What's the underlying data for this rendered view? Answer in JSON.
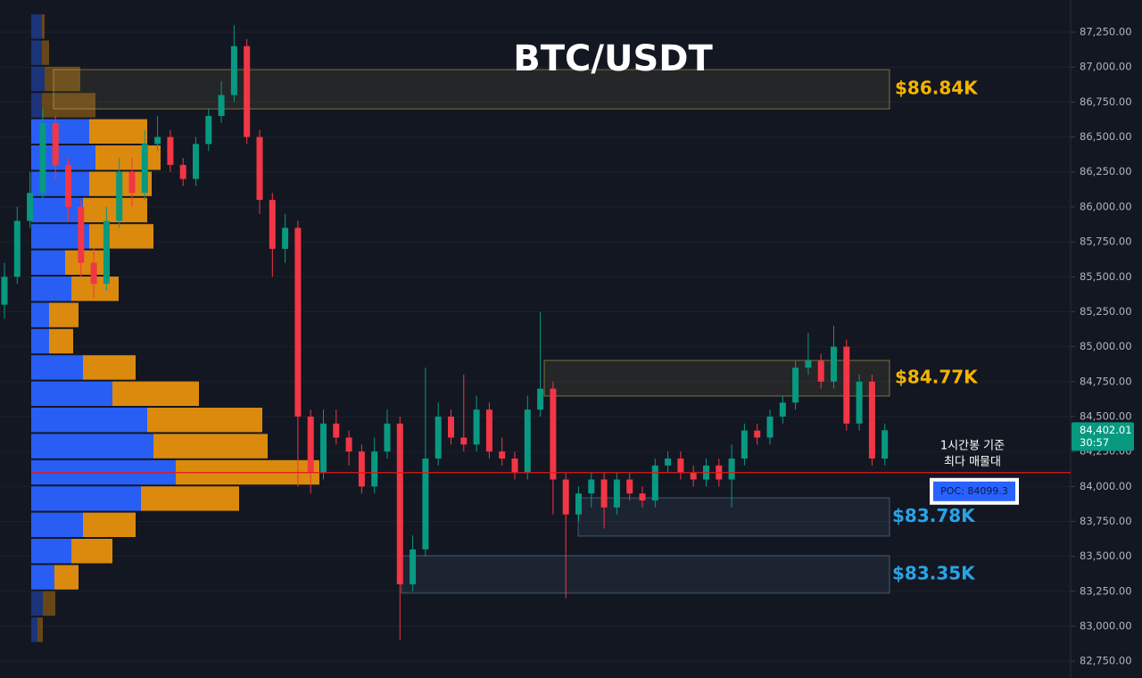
{
  "chart_data": {
    "type": "candlestick",
    "title": "BTC/USDT",
    "ylim": [
      82630,
      87480
    ],
    "yticks": [
      {
        "value": 82750,
        "label": "82,750.00"
      },
      {
        "value": 83000,
        "label": "83,000.00"
      },
      {
        "value": 83250,
        "label": "83,250.00"
      },
      {
        "value": 83500,
        "label": "83,500.00"
      },
      {
        "value": 83750,
        "label": "83,750.00"
      },
      {
        "value": 84000,
        "label": "84,000.00"
      },
      {
        "value": 84250,
        "label": "84,250.00"
      },
      {
        "value": 84500,
        "label": "84,500.00"
      },
      {
        "value": 84750,
        "label": "84,750.00"
      },
      {
        "value": 85000,
        "label": "85,000.00"
      },
      {
        "value": 85250,
        "label": "85,250.00"
      },
      {
        "value": 85500,
        "label": "85,500.00"
      },
      {
        "value": 85750,
        "label": "85,750.00"
      },
      {
        "value": 86000,
        "label": "86,000.00"
      },
      {
        "value": 86250,
        "label": "86,250.00"
      },
      {
        "value": 86500,
        "label": "86,500.00"
      },
      {
        "value": 86750,
        "label": "86,750.00"
      },
      {
        "value": 87000,
        "label": "87,000.00"
      },
      {
        "value": 87250,
        "label": "87,250.00"
      }
    ],
    "up_color": "#089981",
    "down_color": "#f23645",
    "open": [
      85300,
      85500,
      85900,
      86100,
      86600,
      86300,
      86000,
      85600,
      85450,
      85900,
      86250,
      86100,
      86450,
      86500,
      86300,
      86200,
      86450,
      86650,
      86800,
      87150,
      86500,
      86050,
      85700,
      85850,
      84500,
      84100,
      84450,
      84350,
      84250,
      84000,
      84250,
      84450,
      83300,
      83550,
      84200,
      84500,
      84350,
      84300,
      84550,
      84250,
      84200,
      84100,
      84550,
      84700,
      84050,
      83800,
      83950,
      84050,
      83850,
      84050,
      83950,
      83900,
      84150,
      84200,
      84100,
      84050,
      84150,
      84050,
      84200,
      84400,
      84350,
      84500,
      84600,
      84850,
      84900,
      84750,
      85000,
      84450,
      84750,
      84200
    ],
    "high": [
      85600,
      86000,
      86250,
      86700,
      86650,
      86350,
      86050,
      85700,
      86000,
      86350,
      86350,
      86550,
      86650,
      86550,
      86350,
      86500,
      86700,
      86900,
      87300,
      87200,
      86550,
      86100,
      85950,
      85900,
      84550,
      84550,
      84550,
      84400,
      84300,
      84350,
      84550,
      84500,
      83650,
      84850,
      84600,
      84550,
      84800,
      84650,
      84600,
      84350,
      84250,
      84650,
      85250,
      84750,
      84100,
      84000,
      84100,
      84100,
      84100,
      84100,
      84000,
      84200,
      84250,
      84250,
      84150,
      84200,
      84200,
      84300,
      84450,
      84450,
      84550,
      84650,
      84900,
      85100,
      84950,
      85150,
      85050,
      84800,
      84800,
      84450
    ],
    "low": [
      85200,
      85450,
      85850,
      86050,
      86200,
      85900,
      85500,
      85350,
      85400,
      85850,
      86000,
      86050,
      86400,
      86250,
      86150,
      86150,
      86400,
      86600,
      86750,
      86450,
      85950,
      85500,
      85600,
      84000,
      83950,
      84050,
      84300,
      84150,
      83950,
      83950,
      84200,
      82900,
      83250,
      83500,
      84150,
      84300,
      84250,
      84250,
      84200,
      84150,
      84050,
      84050,
      84500,
      83800,
      83200,
      83750,
      83850,
      83700,
      83800,
      83900,
      83850,
      83850,
      84100,
      84050,
      84000,
      84000,
      84000,
      83850,
      84150,
      84300,
      84300,
      84450,
      84550,
      84800,
      84700,
      84700,
      84400,
      84400,
      84150,
      84150
    ],
    "close": [
      85500,
      85900,
      86100,
      86600,
      86300,
      86000,
      85600,
      85450,
      85900,
      86250,
      86100,
      86450,
      86500,
      86300,
      86200,
      86450,
      86650,
      86800,
      87150,
      86500,
      86050,
      85700,
      85850,
      84500,
      84100,
      84450,
      84350,
      84250,
      84000,
      84250,
      84450,
      83300,
      83550,
      84200,
      84500,
      84350,
      84300,
      84550,
      84250,
      84200,
      84100,
      84550,
      84700,
      84050,
      83800,
      83950,
      84050,
      83850,
      84050,
      83950,
      83900,
      84150,
      84200,
      84100,
      84050,
      84150,
      84050,
      84200,
      84400,
      84350,
      84500,
      84600,
      84850,
      84900,
      84750,
      85000,
      84450,
      84750,
      84200,
      84402.01
    ],
    "last_price": {
      "value": 84402.01,
      "label": "84,402.01"
    },
    "countdown": "30:57",
    "volume_profile": {
      "buy_color": "#2962ff",
      "sell_color": "#e6900e",
      "buy": [
        12,
        12,
        15,
        12,
        65,
        72,
        65,
        58,
        65,
        38,
        45,
        20,
        20,
        58,
        91,
        130,
        137,
        162,
        123,
        58,
        45,
        26,
        13,
        7
      ],
      "sell": [
        3,
        8,
        40,
        60,
        65,
        73,
        70,
        72,
        72,
        50,
        53,
        33,
        27,
        59,
        97,
        129,
        128,
        161,
        110,
        59,
        46,
        27,
        14,
        6
      ]
    },
    "zones": [
      {
        "label": "$86.84K",
        "top": 86982,
        "bottom": 86701,
        "color": "#f5b400"
      },
      {
        "label": "$84.77K",
        "top": 84902,
        "bottom": 84647,
        "color": "#f5b400"
      },
      {
        "label": "$83.78K",
        "top": 83919,
        "bottom": 83645,
        "color": "#29a3e6"
      },
      {
        "label": "$83.35K",
        "top": 83505,
        "bottom": 83237,
        "color": "#29a3e6"
      }
    ],
    "poc": {
      "value": 84099.3,
      "label": "POC: 84099.3"
    },
    "annotation": [
      "1시간봉 기준",
      "최다 매물대"
    ]
  }
}
